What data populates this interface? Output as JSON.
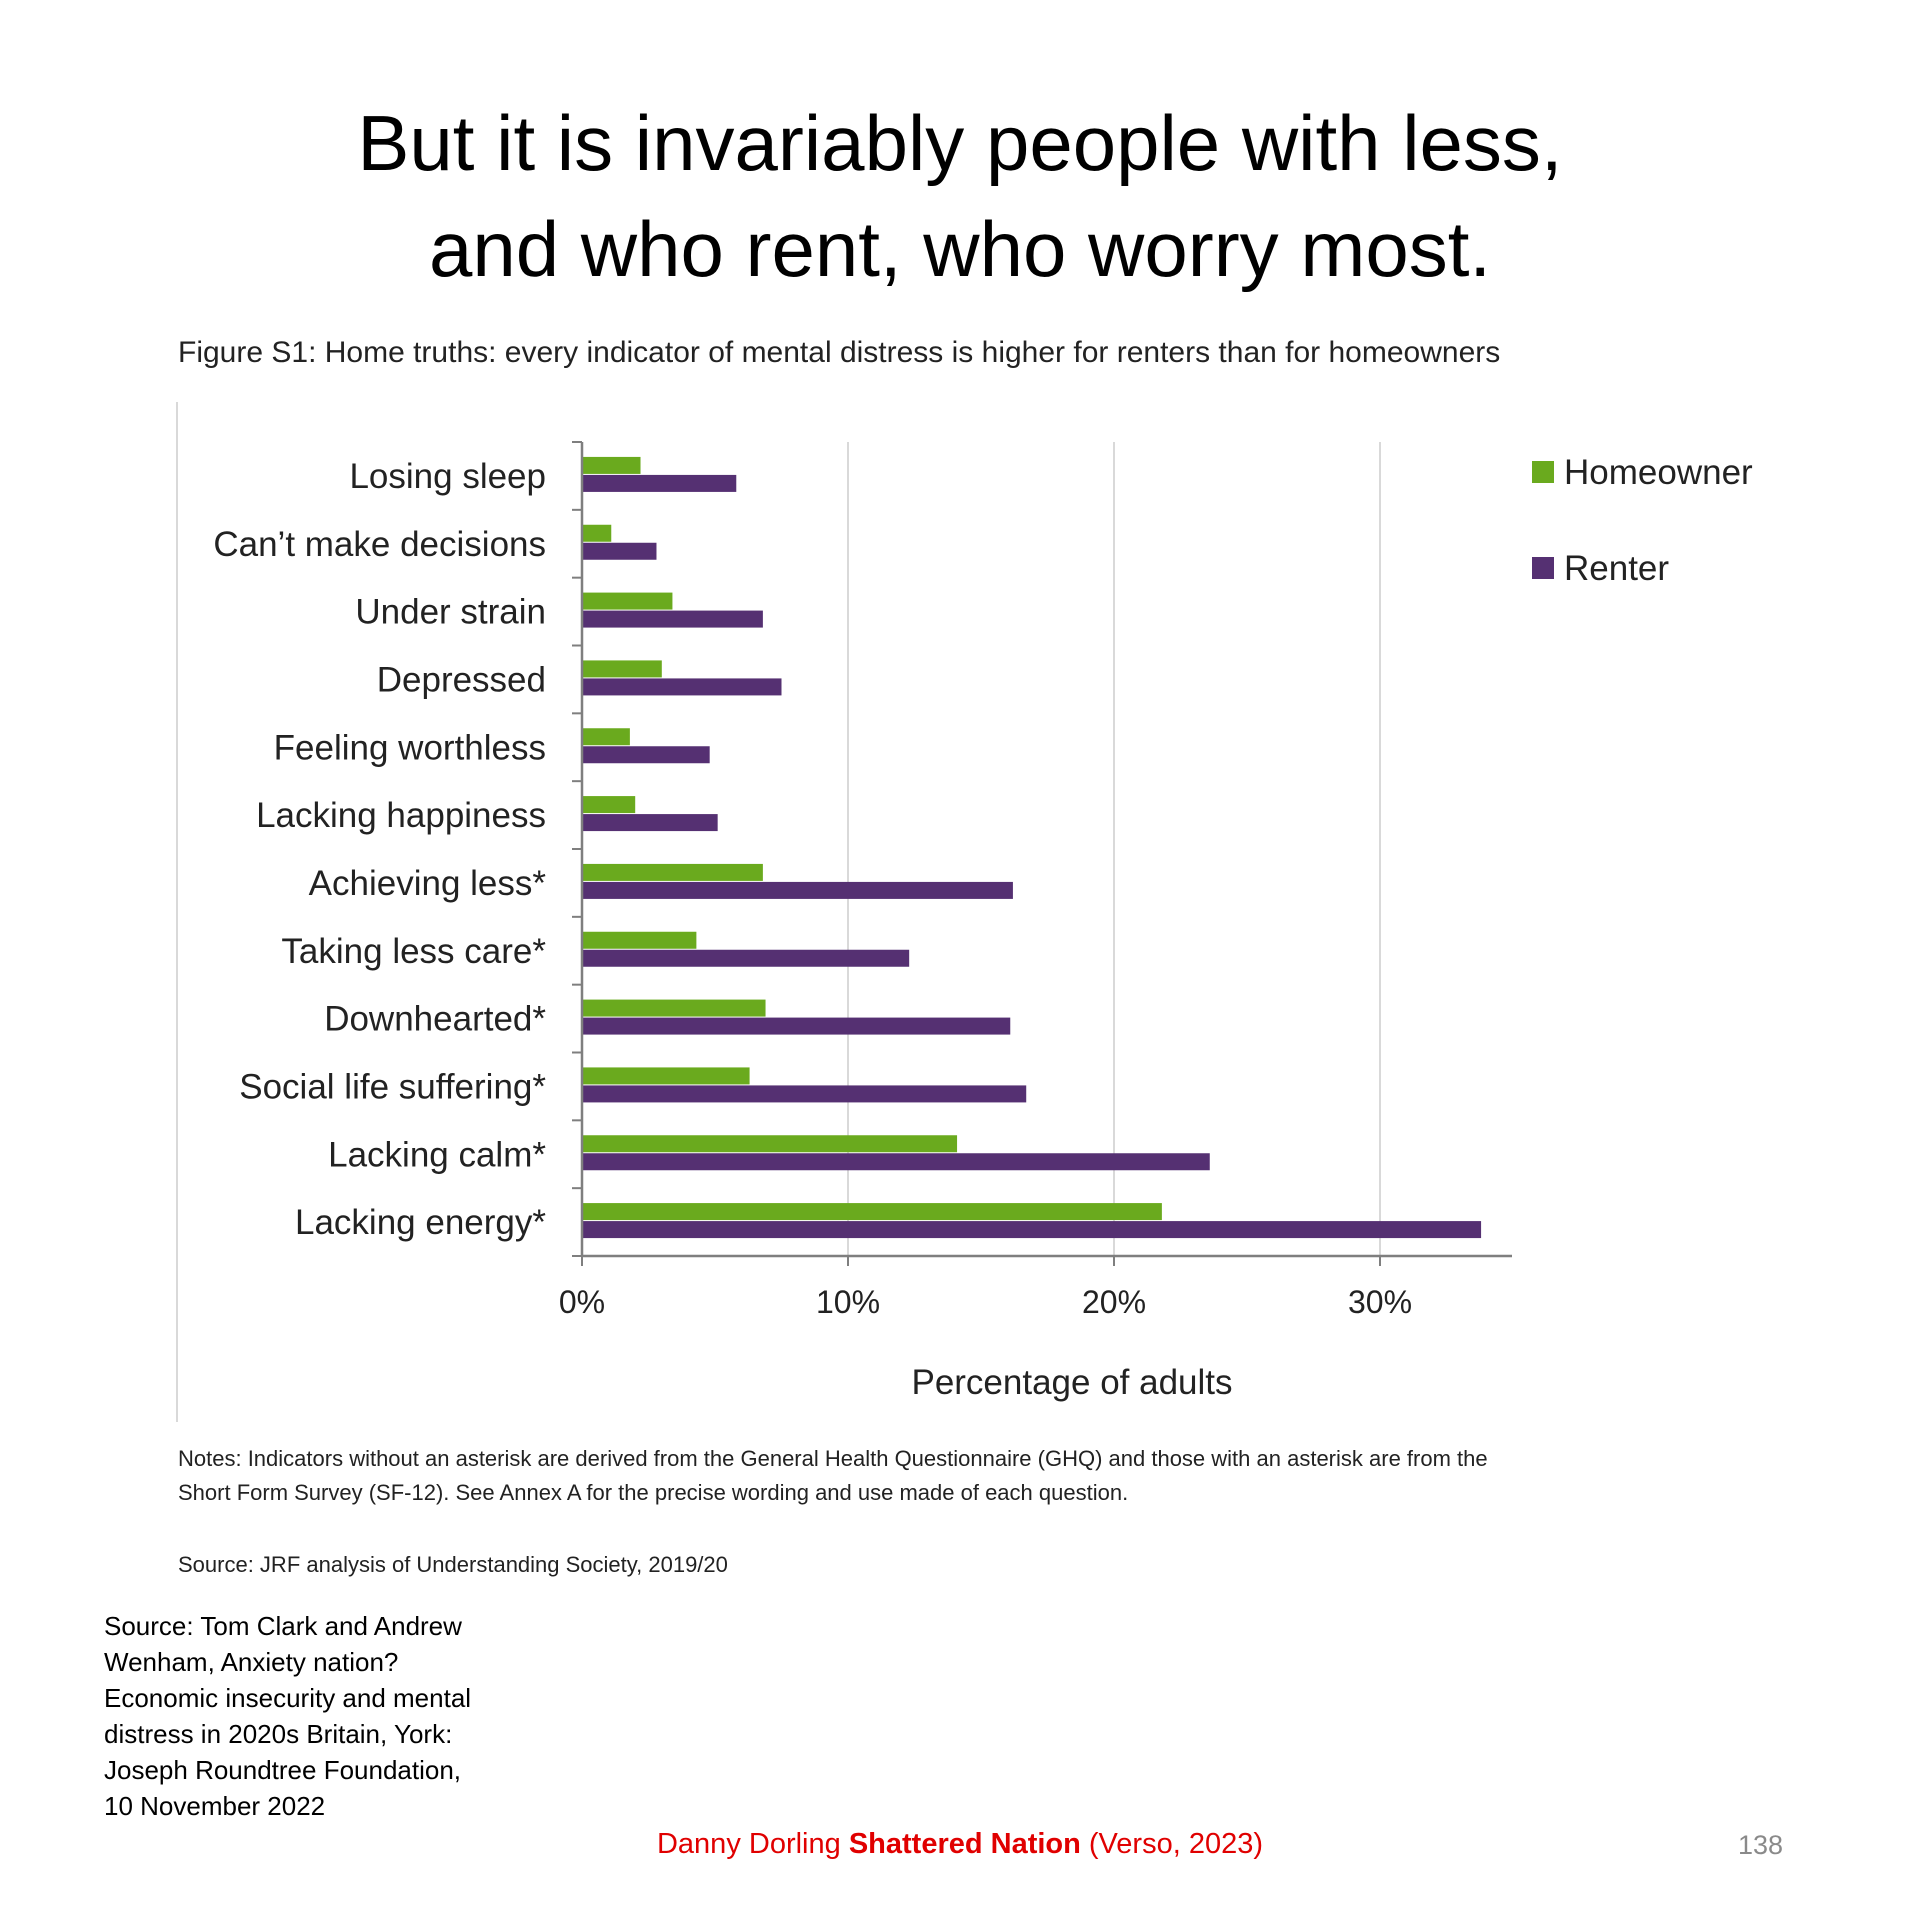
{
  "slide": {
    "title_line1": "But it is invariably people with less,",
    "title_line2": "and who rent, who worry most.",
    "figure_caption": "Figure S1: Home truths: every indicator of mental distress is higher for renters than for homeowners",
    "notes_line1": "Notes: Indicators without an asterisk are derived from the General Health Questionnaire (GHQ) and those with an asterisk are from the",
    "notes_line2": "Short Form Survey (SF-12). See Annex A for the precise wording and use made of each question.",
    "chart_source": "Source: JRF analysis of Understanding Society, 2019/20",
    "reference": {
      "line1": "Source: Tom Clark and Andrew",
      "line2": "Wenham, Anxiety nation?",
      "line3": "Economic insecurity and mental",
      "line4": "distress in 2020s Britain, York:",
      "line5": "Joseph Roundtree Foundation,",
      "line6": "10 November 2022"
    },
    "footer": {
      "author": "Danny Dorling ",
      "book": "Shattered Nation",
      "publisher": " (Verso, 2023)"
    },
    "page_number": "138"
  },
  "colors": {
    "homeowner": "#6aaa1e",
    "renter": "#553072",
    "grid": "#d9d9d9",
    "axis": "#7f7f7f"
  },
  "chart_data": {
    "type": "bar",
    "orientation": "horizontal",
    "title": "Figure S1: Home truths: every indicator of mental distress is higher for renters than for homeowners",
    "categories": [
      "Losing sleep",
      "Can’t make decisions",
      "Under strain",
      "Depressed",
      "Feeling worthless",
      "Lacking happiness",
      "Achieving less*",
      "Taking less care*",
      "Downhearted*",
      "Social life suffering*",
      "Lacking calm*",
      "Lacking energy*"
    ],
    "series": [
      {
        "name": "Homeowner",
        "values": [
          2.2,
          1.1,
          3.4,
          3.0,
          1.8,
          2.0,
          6.8,
          4.3,
          6.9,
          6.3,
          14.1,
          21.8
        ]
      },
      {
        "name": "Renter",
        "values": [
          5.8,
          2.8,
          6.8,
          7.5,
          4.8,
          5.1,
          16.2,
          12.3,
          16.1,
          16.7,
          23.6,
          33.8
        ]
      }
    ],
    "xlabel": "Percentage of adults",
    "ylabel": "",
    "xlim": [
      0,
      35
    ],
    "xticks": [
      0,
      10,
      20,
      30
    ],
    "xtick_labels": [
      "0%",
      "10%",
      "20%",
      "30%"
    ],
    "grid": true,
    "legend": "top-right"
  }
}
